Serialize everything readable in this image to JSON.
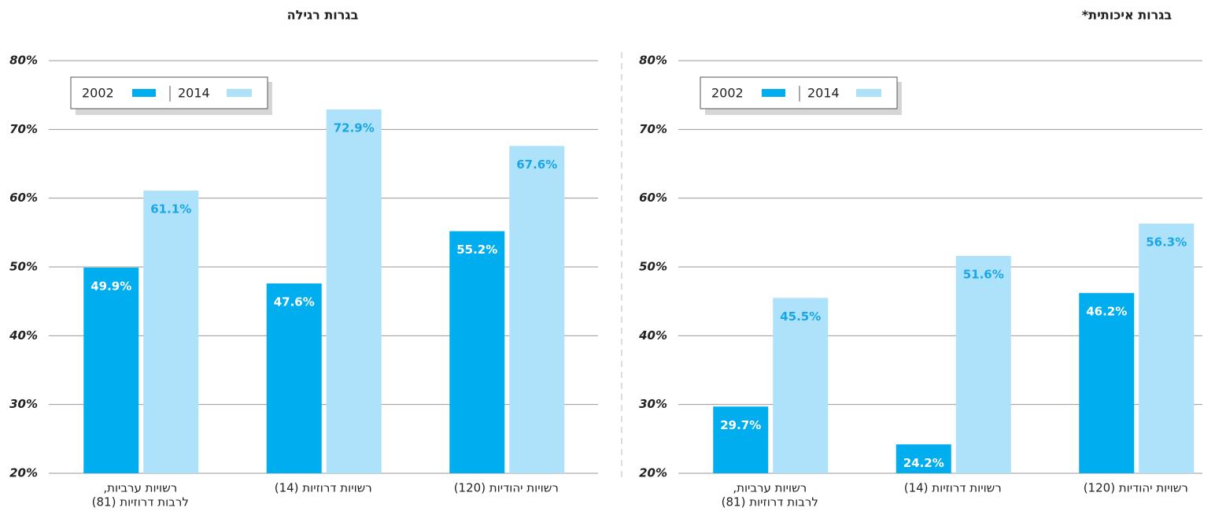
{
  "chart_data": [
    {
      "type": "bar",
      "title": "בגרות רגילה",
      "categories": [
        [
          "רשויות ערביות,",
          "לרבות דרוזיות (81)"
        ],
        [
          "רשויות דרוזיות (14)"
        ],
        [
          "רשויות יהודיות (120)"
        ]
      ],
      "series": [
        {
          "name": "2002",
          "color": "#00adef",
          "values": [
            49.9,
            47.6,
            55.2
          ],
          "value_labels": [
            "49.9%",
            "47.6%",
            "55.2%"
          ]
        },
        {
          "name": "2014",
          "color": "#aee2fb",
          "values": [
            61.1,
            72.9,
            67.6
          ],
          "value_labels": [
            "61.1%",
            "72.9%",
            "67.6%"
          ]
        }
      ],
      "ylim": [
        20,
        80
      ],
      "yticks": [
        {
          "value": 20,
          "label": "20%"
        },
        {
          "value": 30,
          "label": "30%"
        },
        {
          "value": 40,
          "label": "40%"
        },
        {
          "value": 50,
          "label": "50%"
        },
        {
          "value": 60,
          "label": "60%"
        },
        {
          "value": 70,
          "label": "70%"
        },
        {
          "value": 80,
          "label": "80%"
        }
      ],
      "grid": true,
      "legend": "top-left"
    },
    {
      "type": "bar",
      "title": "בגרות איכותית*",
      "categories": [
        [
          "רשויות ערביות,",
          "לרבות דרוזיות (81)"
        ],
        [
          "רשויות דרוזיות (14)"
        ],
        [
          "רשויות יהודיות (120)"
        ]
      ],
      "series": [
        {
          "name": "2002",
          "color": "#00adef",
          "values": [
            29.7,
            24.2,
            46.2
          ],
          "value_labels": [
            "29.7%",
            "24.2%",
            "46.2%"
          ]
        },
        {
          "name": "2014",
          "color": "#aee2fb",
          "values": [
            45.5,
            51.6,
            56.3
          ],
          "value_labels": [
            "45.5%",
            "51.6%",
            "56.3%"
          ]
        }
      ],
      "ylim": [
        20,
        80
      ],
      "yticks": [
        {
          "value": 20,
          "label": "20%"
        },
        {
          "value": 30,
          "label": "30%"
        },
        {
          "value": 40,
          "label": "40%"
        },
        {
          "value": 50,
          "label": "50%"
        },
        {
          "value": 60,
          "label": "60%"
        },
        {
          "value": 70,
          "label": "70%"
        },
        {
          "value": 80,
          "label": "80%"
        }
      ],
      "grid": true,
      "legend": "top-left"
    }
  ]
}
